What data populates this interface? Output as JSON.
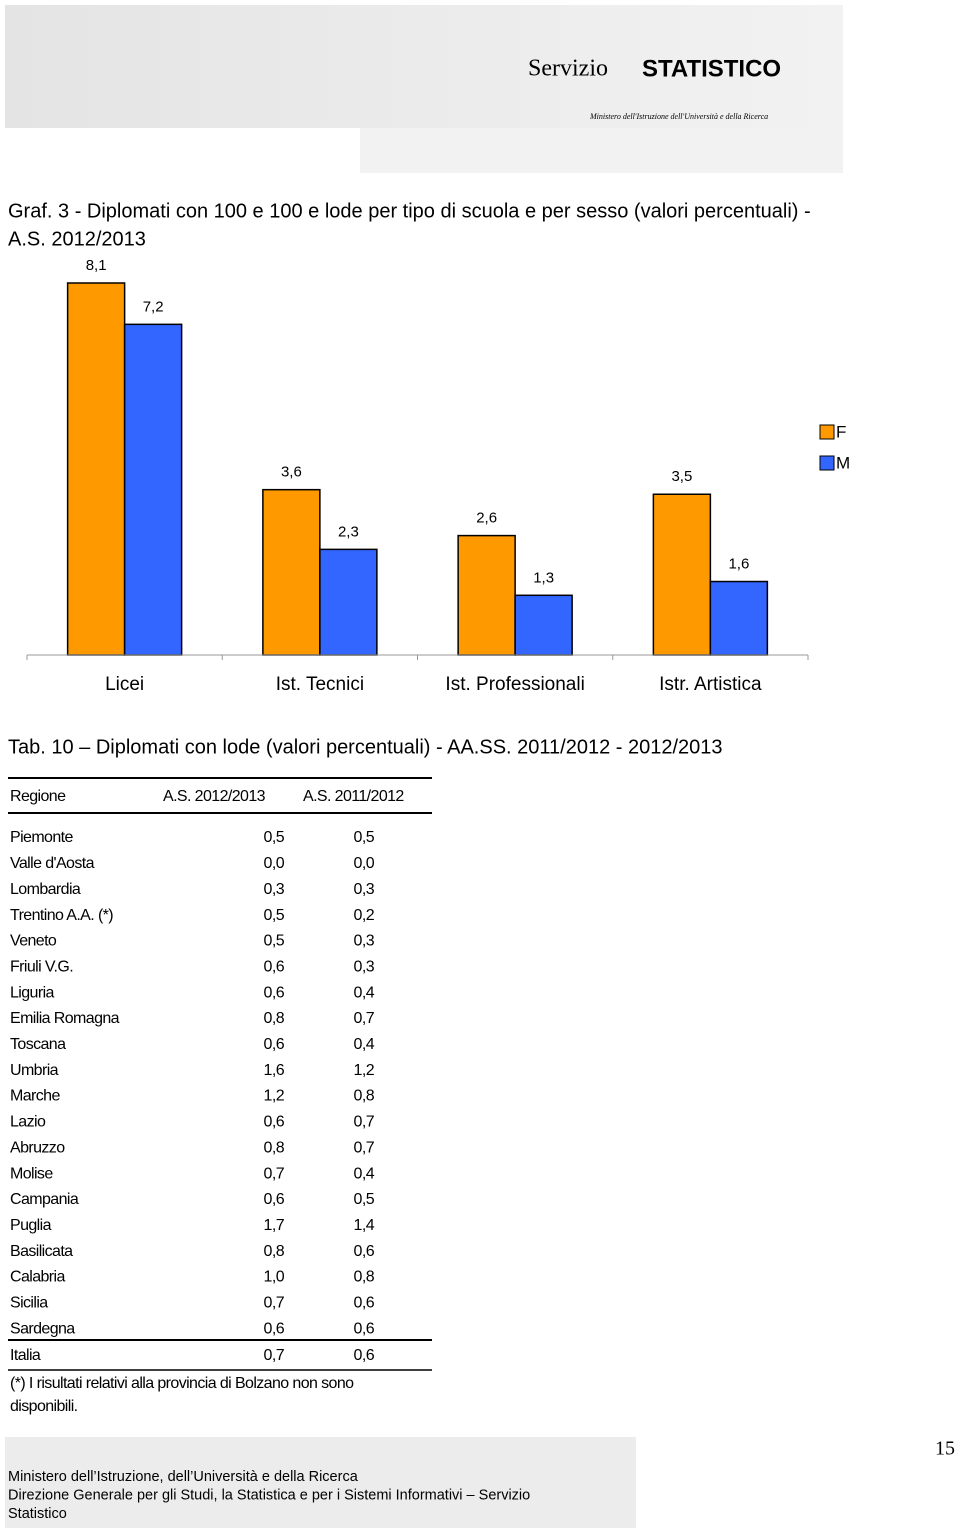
{
  "header": {
    "logo_a": "Servizio",
    "logo_b": "STATISTICO",
    "ministry": "Ministero dell'Istruzione dell'Università e della Ricerca"
  },
  "chart_data": {
    "type": "bar",
    "title": [
      "Graf. 3 - Diplomati con 100 e 100 e lode per tipo di scuola e per sesso (valori percentuali) -",
      "A.S. 2012/2013"
    ],
    "categories": [
      "Licei",
      "Ist. Tecnici",
      "Ist. Professionali",
      "Istr. Artistica"
    ],
    "series": [
      {
        "name": "F",
        "color": "#FF9900",
        "values": [
          8.1,
          3.6,
          2.6,
          3.5
        ],
        "value_labels": [
          "8,1",
          "3,6",
          "2,6",
          "3,5"
        ]
      },
      {
        "name": "M",
        "color": "#3366FF",
        "values": [
          7.2,
          2.3,
          1.3,
          1.6
        ],
        "value_labels": [
          "7,2",
          "2,3",
          "1,3",
          "1,6"
        ]
      }
    ]
  },
  "table": {
    "title": "Tab. 10 – Diplomati con lode (valori percentuali) - AA.SS. 2011/2012 - 2012/2013",
    "columns": [
      "Regione",
      "A.S. 2012/2013",
      "A.S. 2011/2012"
    ],
    "rows": [
      [
        "Piemonte",
        "0,5",
        "0,5"
      ],
      [
        "Valle d'Aosta",
        "0,0",
        "0,0"
      ],
      [
        "Lombardia",
        "0,3",
        "0,3"
      ],
      [
        "Trentino A.A. (*)",
        "0,5",
        "0,2"
      ],
      [
        "Veneto",
        "0,5",
        "0,3"
      ],
      [
        "Friuli V.G.",
        "0,6",
        "0,3"
      ],
      [
        "Liguria",
        "0,6",
        "0,4"
      ],
      [
        "Emilia Romagna",
        "0,8",
        "0,7"
      ],
      [
        "Toscana",
        "0,6",
        "0,4"
      ],
      [
        "Umbria",
        "1,6",
        "1,2"
      ],
      [
        "Marche",
        "1,2",
        "0,8"
      ],
      [
        "Lazio",
        "0,6",
        "0,7"
      ],
      [
        "Abruzzo",
        "0,8",
        "0,7"
      ],
      [
        "Molise",
        "0,7",
        "0,4"
      ],
      [
        "Campania",
        "0,6",
        "0,5"
      ],
      [
        "Puglia",
        "1,7",
        "1,4"
      ],
      [
        "Basilicata",
        "0,8",
        "0,6"
      ],
      [
        "Calabria",
        "1,0",
        "0,8"
      ],
      [
        "Sicilia",
        "0,7",
        "0,6"
      ],
      [
        "Sardegna",
        "0,6",
        "0,6"
      ]
    ],
    "total": [
      "Italia",
      "0,7",
      "0,6"
    ],
    "note": [
      "(*) I risultati relativi alla provincia di Bolzano non sono",
      "disponibili."
    ]
  },
  "footer": {
    "lines": [
      "Ministero dell’Istruzione, dell’Università e della Ricerca",
      "Direzione Generale  per gli Studi, la Statistica e per i Sistemi Informativi – Servizio",
      "Statistico"
    ]
  },
  "page_number": "15"
}
